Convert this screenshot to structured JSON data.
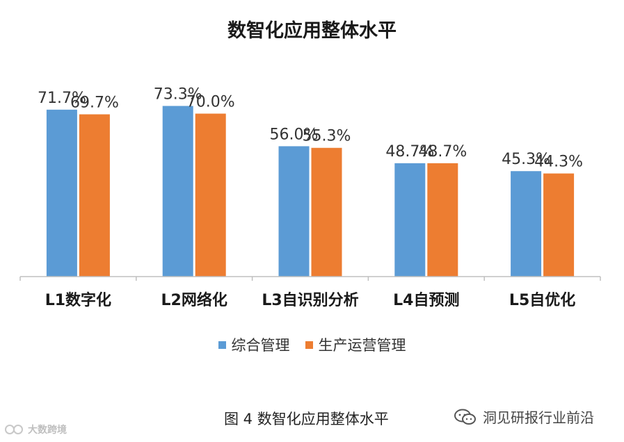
{
  "chart_data": {
    "type": "bar",
    "title": "数智化应用整体水平",
    "categories": [
      "L1数字化",
      "L2网络化",
      "L3自识别分析",
      "L4自预测",
      "L5自优化"
    ],
    "series": [
      {
        "name": "综合管理",
        "values": [
          71.7,
          73.3,
          56.0,
          48.7,
          45.3
        ],
        "labels": [
          "71.7%",
          "73.3%",
          "56.0%",
          "48.7%",
          "45.3%"
        ],
        "color": "#5B9BD5"
      },
      {
        "name": "生产运营管理",
        "values": [
          69.7,
          70.0,
          55.3,
          48.7,
          44.3
        ],
        "labels": [
          "69.7%",
          "70.0%",
          "55.3%",
          "48.7%",
          "44.3%"
        ],
        "color": "#ED7D31"
      }
    ],
    "ylim": [
      0,
      100
    ],
    "grid": false,
    "legend": "bottom"
  },
  "caption": "图 4 数智化应用整体水平",
  "watermark_right": "洞见研报行业前沿",
  "watermark_left": "大数跨境",
  "icons": {
    "wechat": "wechat-icon",
    "logo": "logo-mark-icon"
  }
}
